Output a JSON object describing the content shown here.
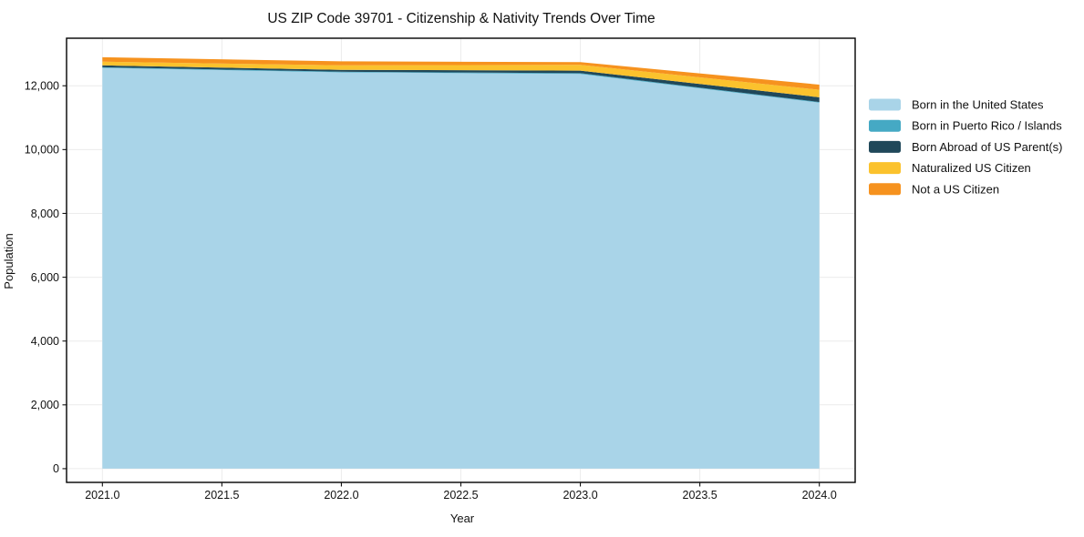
{
  "page": {
    "title": "US ZIP Code 39701 - Citizenship & Nativity Trends Over Time"
  },
  "chart_data": {
    "type": "area",
    "stacked": true,
    "title": "US ZIP Code 39701 - Citizenship & Nativity Trends Over Time",
    "xlabel": "Year",
    "ylabel": "Population",
    "x": [
      2021,
      2022,
      2023,
      2024
    ],
    "series": [
      {
        "name": "Born in the United States",
        "color": "#A9D4E8",
        "values": [
          12560,
          12420,
          12370,
          11470
        ]
      },
      {
        "name": "Born in Puerto Rico / Islands",
        "color": "#45A9C4",
        "values": [
          20,
          20,
          25,
          20
        ]
      },
      {
        "name": "Born Abroad of US Parent(s)",
        "color": "#20485A",
        "values": [
          60,
          60,
          80,
          150
        ]
      },
      {
        "name": "Naturalized US Citizen",
        "color": "#FBC22D",
        "values": [
          115,
          140,
          180,
          235
        ]
      },
      {
        "name": "Not a US Citizen",
        "color": "#F6921E",
        "values": [
          140,
          125,
          85,
          160
        ]
      }
    ],
    "totals": [
      12895,
      12765,
      12740,
      12035
    ],
    "x_ticks": {
      "values": [
        2021.0,
        2021.5,
        2022.0,
        2022.5,
        2023.0,
        2023.5,
        2024.0
      ],
      "labels": [
        "2021.0",
        "2021.5",
        "2022.0",
        "2022.5",
        "2023.0",
        "2023.5",
        "2024.0"
      ]
    },
    "y_ticks": {
      "values": [
        0,
        2000,
        4000,
        6000,
        8000,
        10000,
        12000
      ],
      "labels": [
        "0",
        "2,000",
        "4,000",
        "6,000",
        "8,000",
        "10,000",
        "12,000"
      ]
    },
    "xlim": [
      2020.85,
      2024.15
    ],
    "ylim": [
      -430,
      13490
    ],
    "grid": true,
    "legend_position": "right-outside"
  },
  "colors": {
    "background": "#ffffff",
    "grid": "#ececec",
    "axis": "#000000",
    "text": "#111111"
  }
}
